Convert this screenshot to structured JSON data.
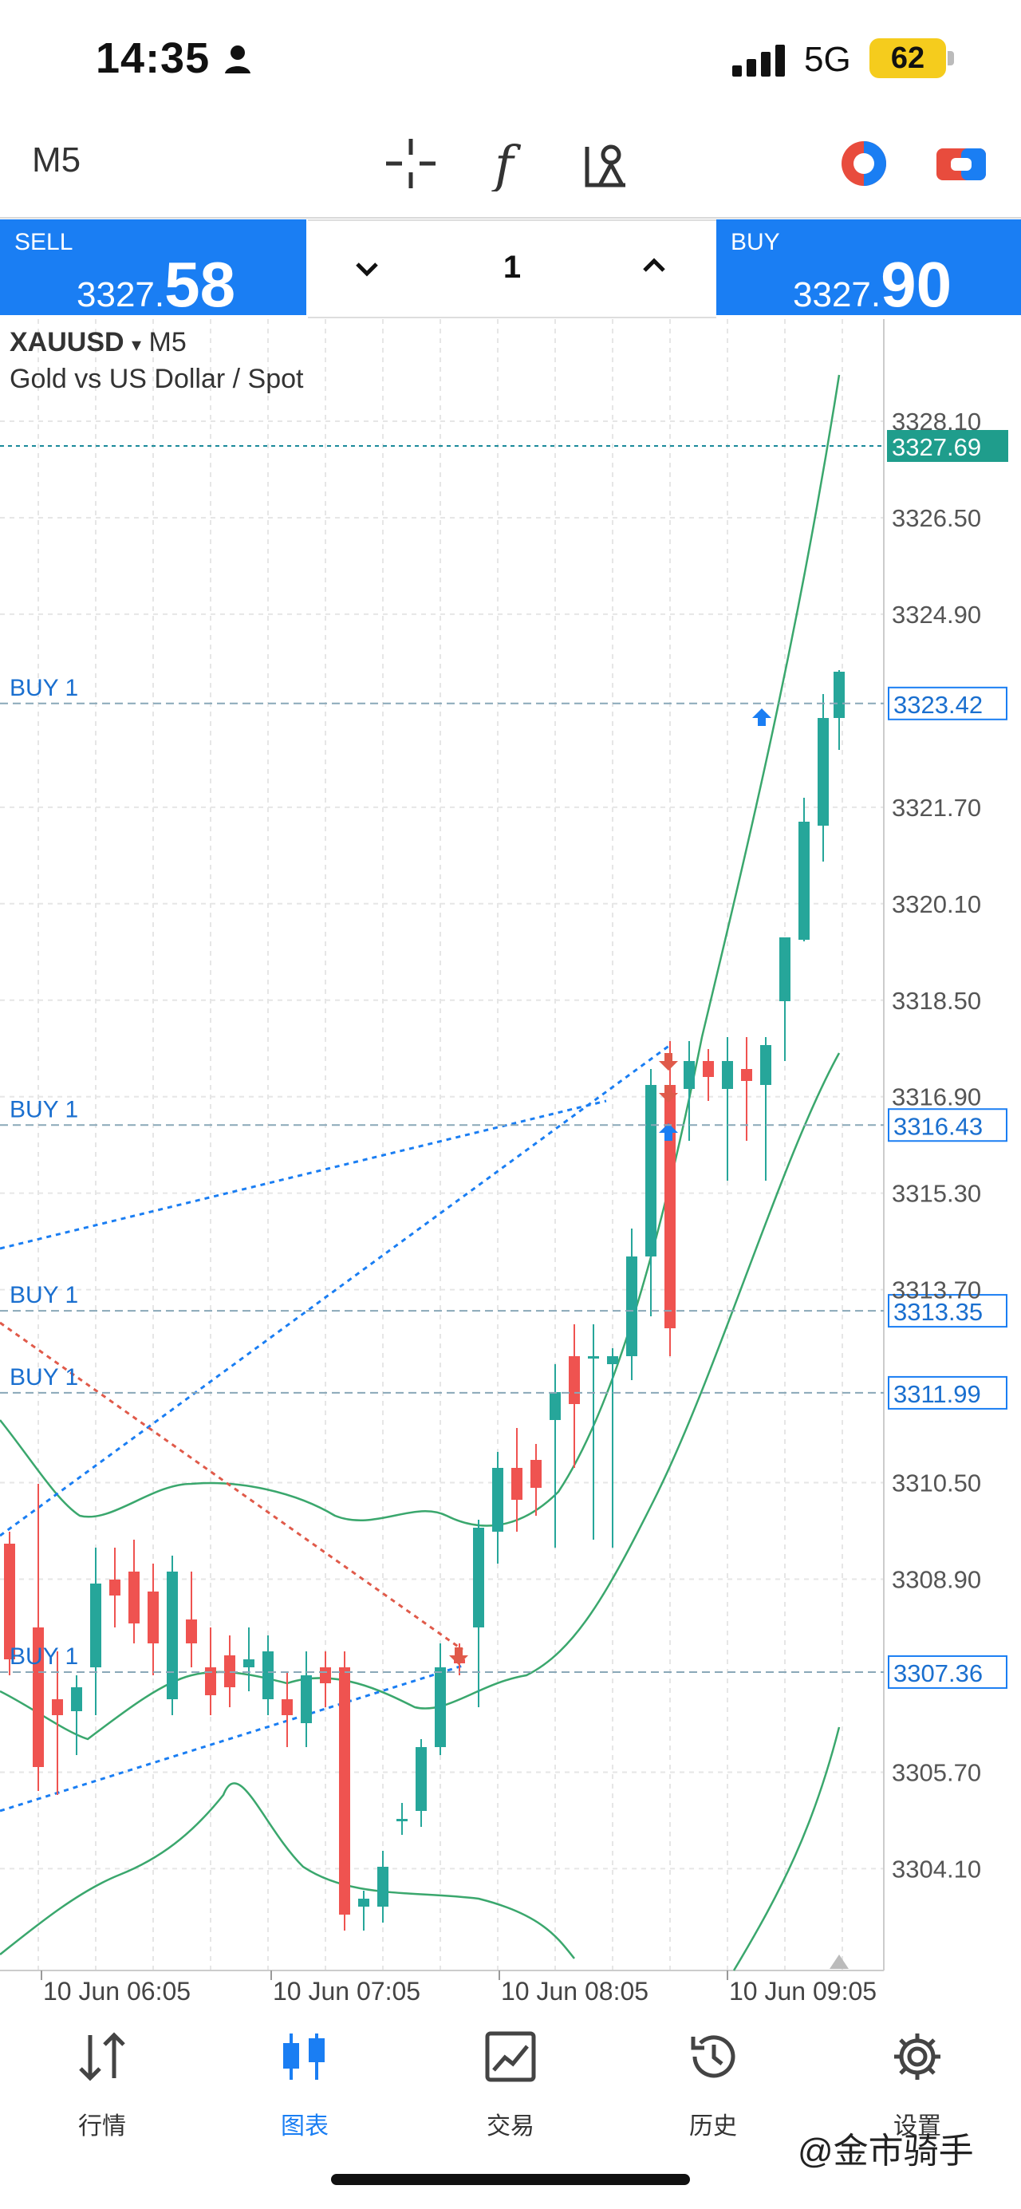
{
  "status_bar": {
    "time": "14:35",
    "network": "5G",
    "battery": "62"
  },
  "toolbar": {
    "timeframe": "M5",
    "icons": [
      "crosshair-icon",
      "function-icon",
      "objects-icon",
      "color-scheme-icon",
      "one-click-trading-icon"
    ]
  },
  "trade_panel": {
    "sell_label": "SELL",
    "sell_price_small": "3327.",
    "sell_price_big": "58",
    "buy_label": "BUY",
    "buy_price_small": "3327.",
    "buy_price_big": "90",
    "lot": "1"
  },
  "chart": {
    "symbol": "XAUUSD",
    "timeframe": "M5",
    "description": "Gold vs US Dollar / Spot",
    "current_price": "3327.69",
    "price_labels": [
      "3328.10",
      "3326.50",
      "3324.90",
      "3321.70",
      "3320.10",
      "3318.50",
      "3316.90",
      "3315.30",
      "3313.70",
      "3310.50",
      "3308.90",
      "3305.70",
      "3304.10"
    ],
    "order_lines": [
      {
        "label": "BUY 1",
        "price": "3323.42"
      },
      {
        "label": "BUY 1",
        "price": "3316.43"
      },
      {
        "label": "BUY 1",
        "price": "3313.35"
      },
      {
        "label": "BUY 1",
        "price": "3311.99"
      },
      {
        "label": "BUY 1",
        "price": "3307.36"
      }
    ],
    "time_labels": [
      "10 Jun 06:05",
      "10 Jun 07:05",
      "10 Jun 08:05",
      "10 Jun 09:05"
    ],
    "colors": {
      "bull": "#26a69a",
      "bear": "#ef5350",
      "order": "#1a7ef3",
      "band": "#3aa76d"
    }
  },
  "bottom_nav": {
    "items": [
      {
        "label": "行情",
        "icon": "quotes-icon"
      },
      {
        "label": "图表",
        "icon": "chart-icon",
        "active": true
      },
      {
        "label": "交易",
        "icon": "trade-icon"
      },
      {
        "label": "历史",
        "icon": "history-icon"
      },
      {
        "label": "设置",
        "icon": "settings-icon"
      }
    ]
  },
  "watermark": "@金市骑手"
}
